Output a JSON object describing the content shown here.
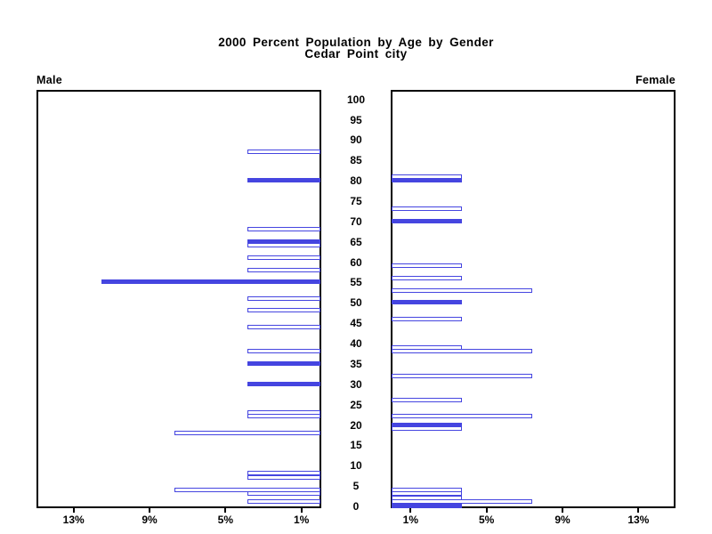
{
  "page": {
    "background": "#ffffff"
  },
  "chart_data": {
    "type": "bar",
    "subtype": "population-pyramid",
    "title": "2000 Percent Population by Age by Gender",
    "subtitle": "Cedar Point city",
    "panel_labels": {
      "left": "Male",
      "right": "Female"
    },
    "age_axis": {
      "min": 0,
      "max": 100,
      "tick_interval": 5,
      "tick_labels": [
        "0",
        "5",
        "10",
        "15",
        "20",
        "25",
        "30",
        "35",
        "40",
        "45",
        "50",
        "55",
        "60",
        "65",
        "70",
        "75",
        "80",
        "85",
        "90",
        "95",
        "100"
      ]
    },
    "percent_axis": {
      "max": 15,
      "ticks": [
        1,
        5,
        9,
        13
      ],
      "left_tick_labels": [
        "13%",
        "9%",
        "5%",
        "1%"
      ],
      "right_tick_labels": [
        "1%",
        "5%",
        "9%",
        "13%"
      ]
    },
    "colors": {
      "bar": "#4545e0",
      "frame": "#000000",
      "text": "#000000",
      "hollow_fill": "#ffffff"
    },
    "grid": false,
    "legend": "none",
    "series": [
      {
        "name": "Male",
        "side": "left",
        "bars": [
          {
            "age": 87,
            "percent": 3.85,
            "style": "hollow"
          },
          {
            "age": 80,
            "percent": 3.85,
            "style": "solid"
          },
          {
            "age": 68,
            "percent": 3.85,
            "style": "hollow"
          },
          {
            "age": 65,
            "percent": 3.85,
            "style": "solid"
          },
          {
            "age": 64,
            "percent": 3.85,
            "style": "hollow"
          },
          {
            "age": 61,
            "percent": 3.85,
            "style": "hollow"
          },
          {
            "age": 58,
            "percent": 3.85,
            "style": "hollow"
          },
          {
            "age": 55,
            "percent": 11.54,
            "style": "solid"
          },
          {
            "age": 51,
            "percent": 3.85,
            "style": "hollow"
          },
          {
            "age": 48,
            "percent": 3.85,
            "style": "hollow"
          },
          {
            "age": 44,
            "percent": 3.85,
            "style": "hollow"
          },
          {
            "age": 38,
            "percent": 3.85,
            "style": "hollow"
          },
          {
            "age": 35,
            "percent": 3.85,
            "style": "solid"
          },
          {
            "age": 30,
            "percent": 3.85,
            "style": "solid"
          },
          {
            "age": 23,
            "percent": 3.85,
            "style": "hollow"
          },
          {
            "age": 22,
            "percent": 3.85,
            "style": "hollow"
          },
          {
            "age": 18,
            "percent": 7.69,
            "style": "hollow"
          },
          {
            "age": 8,
            "percent": 3.85,
            "style": "hollow"
          },
          {
            "age": 7,
            "percent": 3.85,
            "style": "hollow"
          },
          {
            "age": 4,
            "percent": 7.69,
            "style": "hollow"
          },
          {
            "age": 3,
            "percent": 3.85,
            "style": "hollow"
          },
          {
            "age": 1,
            "percent": 3.85,
            "style": "hollow"
          }
        ]
      },
      {
        "name": "Female",
        "side": "right",
        "bars": [
          {
            "age": 81,
            "percent": 3.7,
            "style": "hollow"
          },
          {
            "age": 80,
            "percent": 3.7,
            "style": "solid"
          },
          {
            "age": 73,
            "percent": 3.7,
            "style": "hollow"
          },
          {
            "age": 70,
            "percent": 3.7,
            "style": "solid"
          },
          {
            "age": 59,
            "percent": 3.7,
            "style": "hollow"
          },
          {
            "age": 56,
            "percent": 3.7,
            "style": "hollow"
          },
          {
            "age": 53,
            "percent": 7.41,
            "style": "hollow"
          },
          {
            "age": 50,
            "percent": 3.7,
            "style": "solid"
          },
          {
            "age": 46,
            "percent": 3.7,
            "style": "hollow"
          },
          {
            "age": 39,
            "percent": 3.7,
            "style": "hollow"
          },
          {
            "age": 38,
            "percent": 7.41,
            "style": "hollow"
          },
          {
            "age": 32,
            "percent": 7.41,
            "style": "hollow"
          },
          {
            "age": 26,
            "percent": 3.7,
            "style": "hollow"
          },
          {
            "age": 22,
            "percent": 7.41,
            "style": "hollow"
          },
          {
            "age": 20,
            "percent": 3.7,
            "style": "solid"
          },
          {
            "age": 19,
            "percent": 3.7,
            "style": "hollow"
          },
          {
            "age": 4,
            "percent": 3.7,
            "style": "hollow"
          },
          {
            "age": 3,
            "percent": 3.7,
            "style": "hollow"
          },
          {
            "age": 2,
            "percent": 3.7,
            "style": "hollow"
          },
          {
            "age": 1,
            "percent": 7.41,
            "style": "hollow"
          },
          {
            "age": 0,
            "percent": 3.7,
            "style": "solid"
          }
        ]
      }
    ]
  }
}
